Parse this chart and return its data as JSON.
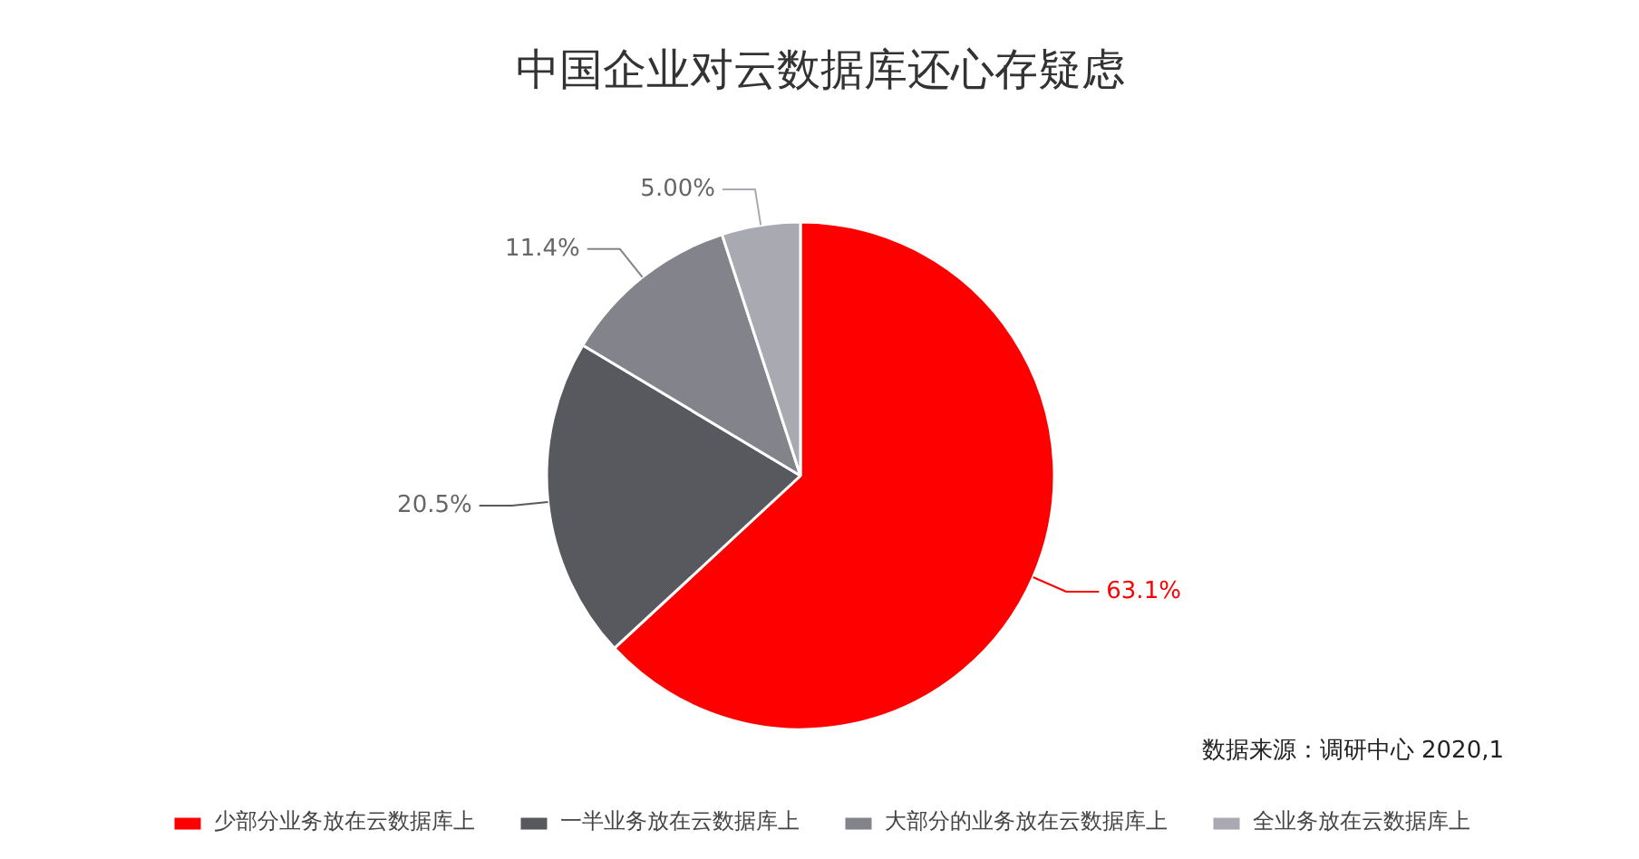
{
  "chart_data": {
    "type": "pie",
    "title": "中国企业对云数据库还心存疑虑",
    "categories": [
      "少部分业务放在云数据库上",
      "一半业务放在云数据库上",
      "大部分的业务放在云数据库上",
      "全业务放在云数据库上"
    ],
    "values": [
      63.1,
      20.5,
      11.4,
      5.0
    ],
    "value_labels": [
      "63.1%",
      "20.5%",
      "11.4%",
      "5.00%"
    ],
    "colors": [
      "#ff0000",
      "#58585f",
      "#83838b",
      "#a9a9b1"
    ],
    "legend": "bottom",
    "annotations": [
      "数据来源：调研中心 2020,1"
    ]
  }
}
